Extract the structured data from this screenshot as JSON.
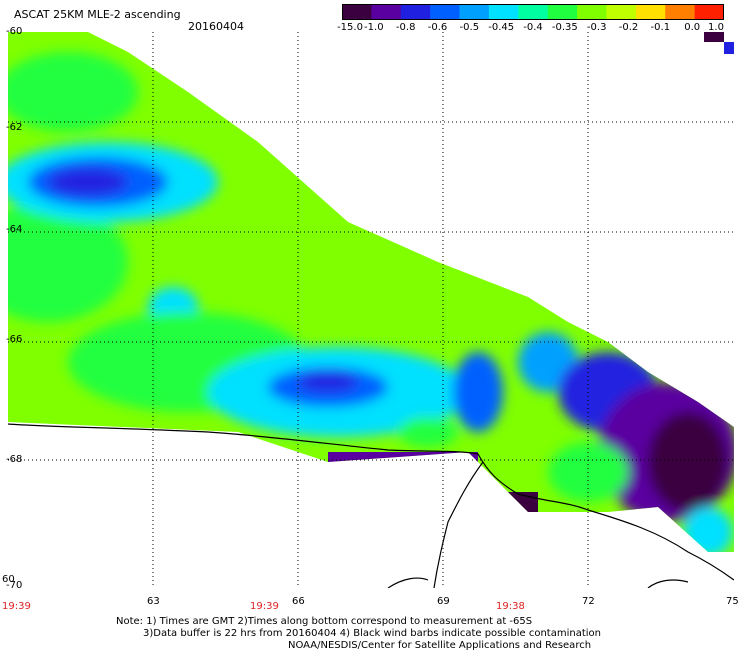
{
  "title": "ASCAT 25KM MLE-2 ascending",
  "date": "20160404",
  "colorbar": {
    "labels": [
      "-15.0",
      "-1.0",
      "-0.8",
      "-0.6",
      "-0.5",
      "-0.45",
      "-0.4",
      "-0.35",
      "-0.3",
      "-0.2",
      "-0.1",
      "0.0",
      "1.0"
    ],
    "colors": [
      "#3a0040",
      "#5a00a0",
      "#2020e0",
      "#0060ff",
      "#00a0ff",
      "#00e0ff",
      "#00ffa0",
      "#20ff40",
      "#80ff00",
      "#c0ff00",
      "#ffe000",
      "#ff8000",
      "#ff2000"
    ]
  },
  "axes": {
    "x_ticks": [
      "60",
      "63",
      "66",
      "69",
      "72",
      "75"
    ],
    "y_ticks": [
      "-60",
      "-62",
      "-64",
      "-66",
      "-68",
      "-70"
    ]
  },
  "times": [
    "19:39",
    "19:39",
    "19:38"
  ],
  "notes": {
    "line1": "Note: 1) Times are GMT 2)Times along bottom correspond to measurement at -65S",
    "line2": "3)Data buffer is 22 hrs from 20160404 4) Black wind barbs indicate possible contamination",
    "line3": "NOAA/NESDIS/Center for Satellite Applications and Research"
  }
}
